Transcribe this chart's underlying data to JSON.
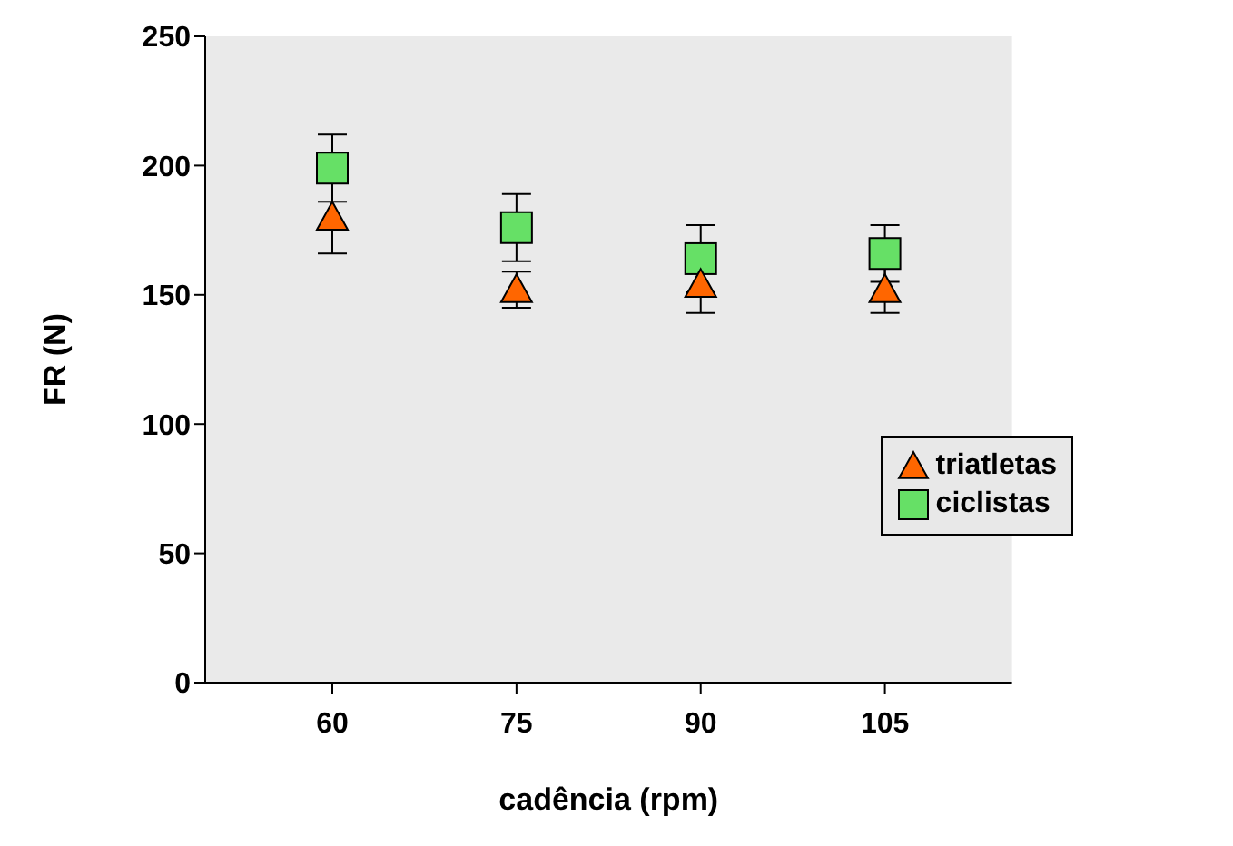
{
  "chart_data": {
    "type": "scatter",
    "xlabel": "cadência (rpm)",
    "ylabel": "FR (N)",
    "categories": [
      "60",
      "75",
      "90",
      "105"
    ],
    "ylim": [
      0,
      250
    ],
    "yticks": [
      0,
      50,
      100,
      150,
      200,
      250
    ],
    "grid": false,
    "legend": "right",
    "series": [
      {
        "name": "triatletas",
        "color": "#ff6600",
        "marker": "triangle",
        "values": [
          180,
          152,
          154,
          152
        ],
        "errors": [
          14,
          7,
          11,
          9
        ]
      },
      {
        "name": "ciclistas",
        "color": "#66e066",
        "marker": "square",
        "values": [
          199,
          176,
          164,
          166
        ],
        "errors": [
          13,
          13,
          13,
          11
        ]
      }
    ]
  }
}
